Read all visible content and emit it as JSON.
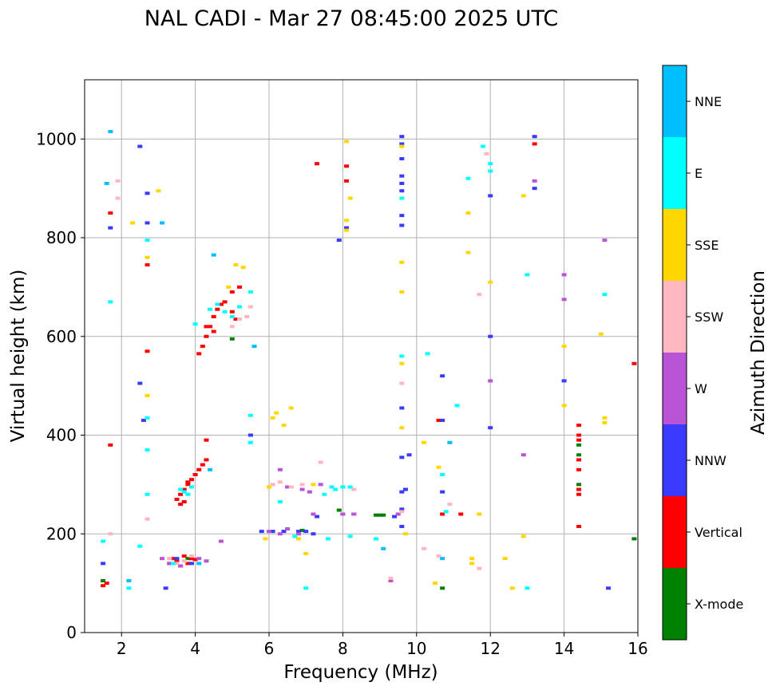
{
  "chart_data": {
    "type": "scatter",
    "title": "NAL CADI - Mar 27 08:45:00 2025 UTC",
    "xlabel": "Frequency (MHz)",
    "ylabel": "Virtual height (km)",
    "xlim": [
      1,
      16
    ],
    "ylim": [
      0,
      1120
    ],
    "x_ticks": [
      "2",
      "4",
      "6",
      "8",
      "10",
      "12",
      "14",
      "16"
    ],
    "y_ticks": [
      "0",
      "200",
      "400",
      "600",
      "800",
      "1000"
    ],
    "grid": true,
    "colorbar": {
      "label": "Azimuth Direction",
      "position": "right",
      "categories": [
        {
          "name": "X-mode",
          "color": "#008000"
        },
        {
          "name": "Vertical",
          "color": "#ff0000"
        },
        {
          "name": "NNW",
          "color": "#3a3aff"
        },
        {
          "name": "W",
          "color": "#b955d4"
        },
        {
          "name": "SSW",
          "color": "#ffb6c1"
        },
        {
          "name": "SSE",
          "color": "#ffd700"
        },
        {
          "name": "E",
          "color": "#00ffff"
        },
        {
          "name": "NNE",
          "color": "#00bfff"
        }
      ]
    },
    "series": [
      {
        "name": "X-mode",
        "color": "#008000",
        "points": [
          [
            5.0,
            595
          ],
          [
            6.9,
            207
          ],
          [
            7.9,
            248
          ],
          [
            8.9,
            238
          ],
          [
            9.0,
            238
          ],
          [
            9.1,
            238
          ],
          [
            10.7,
            90
          ],
          [
            14.4,
            300
          ],
          [
            14.4,
            380
          ],
          [
            14.4,
            360
          ],
          [
            15.9,
            190
          ],
          [
            1.5,
            105
          ],
          [
            3.8,
            150
          ]
        ]
      },
      {
        "name": "Vertical",
        "color": "#ff0000",
        "points": [
          [
            1.5,
            95
          ],
          [
            1.6,
            100
          ],
          [
            1.7,
            380
          ],
          [
            1.7,
            850
          ],
          [
            2.7,
            570
          ],
          [
            2.7,
            745
          ],
          [
            3.3,
            140
          ],
          [
            3.4,
            150
          ],
          [
            3.5,
            145
          ],
          [
            3.6,
            135
          ],
          [
            3.7,
            155
          ],
          [
            3.8,
            140
          ],
          [
            3.9,
            150
          ],
          [
            4.0,
            148
          ],
          [
            3.5,
            270
          ],
          [
            3.6,
            280
          ],
          [
            3.7,
            290
          ],
          [
            3.8,
            300
          ],
          [
            3.8,
            305
          ],
          [
            3.9,
            310
          ],
          [
            4.0,
            320
          ],
          [
            4.1,
            330
          ],
          [
            4.2,
            340
          ],
          [
            4.3,
            350
          ],
          [
            4.3,
            390
          ],
          [
            3.6,
            260
          ],
          [
            3.7,
            265
          ],
          [
            4.1,
            565
          ],
          [
            4.2,
            580
          ],
          [
            4.3,
            600
          ],
          [
            4.4,
            620
          ],
          [
            4.5,
            640
          ],
          [
            4.6,
            655
          ],
          [
            4.7,
            665
          ],
          [
            4.8,
            670
          ],
          [
            5.0,
            690
          ],
          [
            5.2,
            700
          ],
          [
            4.3,
            620
          ],
          [
            4.5,
            610
          ],
          [
            5.0,
            650
          ],
          [
            5.1,
            635
          ],
          [
            7.3,
            950
          ],
          [
            8.1,
            945
          ],
          [
            8.1,
            915
          ],
          [
            10.6,
            430
          ],
          [
            10.7,
            240
          ],
          [
            11.2,
            240
          ],
          [
            13.2,
            990
          ],
          [
            14.4,
            420
          ],
          [
            14.4,
            400
          ],
          [
            14.4,
            390
          ],
          [
            14.4,
            350
          ],
          [
            14.4,
            330
          ],
          [
            14.4,
            290
          ],
          [
            14.4,
            280
          ],
          [
            14.4,
            215
          ],
          [
            15.9,
            545
          ]
        ]
      },
      {
        "name": "NNW",
        "color": "#3a3aff",
        "points": [
          [
            1.5,
            140
          ],
          [
            1.7,
            820
          ],
          [
            2.5,
            985
          ],
          [
            2.7,
            890
          ],
          [
            2.7,
            830
          ],
          [
            2.5,
            505
          ],
          [
            2.6,
            430
          ],
          [
            3.2,
            90
          ],
          [
            3.5,
            150
          ],
          [
            3.9,
            140
          ],
          [
            5.5,
            400
          ],
          [
            5.8,
            205
          ],
          [
            6.1,
            205
          ],
          [
            6.4,
            205
          ],
          [
            6.8,
            205
          ],
          [
            7.0,
            205
          ],
          [
            7.2,
            200
          ],
          [
            7.3,
            235
          ],
          [
            8.0,
            240
          ],
          [
            8.3,
            240
          ],
          [
            7.9,
            795
          ],
          [
            8.1,
            820
          ],
          [
            9.6,
            1005
          ],
          [
            9.6,
            990
          ],
          [
            9.6,
            960
          ],
          [
            9.6,
            925
          ],
          [
            9.6,
            910
          ],
          [
            9.6,
            895
          ],
          [
            9.6,
            845
          ],
          [
            9.6,
            825
          ],
          [
            9.6,
            455
          ],
          [
            9.6,
            355
          ],
          [
            9.8,
            360
          ],
          [
            9.6,
            215
          ],
          [
            9.4,
            235
          ],
          [
            9.6,
            250
          ],
          [
            9.6,
            285
          ],
          [
            9.7,
            290
          ],
          [
            10.7,
            520
          ],
          [
            10.7,
            430
          ],
          [
            10.7,
            285
          ],
          [
            12.0,
            885
          ],
          [
            12.0,
            600
          ],
          [
            12.0,
            415
          ],
          [
            13.2,
            900
          ],
          [
            13.2,
            1005
          ],
          [
            14.0,
            510
          ],
          [
            15.2,
            90
          ]
        ]
      },
      {
        "name": "W",
        "color": "#b955d4",
        "points": [
          [
            3.1,
            150
          ],
          [
            3.3,
            140
          ],
          [
            3.6,
            135
          ],
          [
            4.1,
            150
          ],
          [
            4.3,
            145
          ],
          [
            4.7,
            185
          ],
          [
            6.0,
            205
          ],
          [
            6.3,
            200
          ],
          [
            6.5,
            210
          ],
          [
            6.8,
            200
          ],
          [
            6.3,
            330
          ],
          [
            6.5,
            295
          ],
          [
            6.9,
            290
          ],
          [
            7.2,
            240
          ],
          [
            7.1,
            285
          ],
          [
            7.4,
            300
          ],
          [
            8.0,
            240
          ],
          [
            8.3,
            240
          ],
          [
            9.3,
            105
          ],
          [
            9.5,
            240
          ],
          [
            12.0,
            510
          ],
          [
            12.9,
            360
          ],
          [
            13.2,
            915
          ],
          [
            14.0,
            675
          ],
          [
            14.0,
            725
          ],
          [
            15.1,
            795
          ]
        ]
      },
      {
        "name": "SSW",
        "color": "#ffb6c1",
        "points": [
          [
            1.7,
            200
          ],
          [
            1.9,
            915
          ],
          [
            1.9,
            880
          ],
          [
            2.7,
            230
          ],
          [
            3.3,
            150
          ],
          [
            3.5,
            140
          ],
          [
            3.7,
            145
          ],
          [
            3.9,
            155
          ],
          [
            5.0,
            620
          ],
          [
            5.2,
            635
          ],
          [
            5.4,
            640
          ],
          [
            5.5,
            660
          ],
          [
            6.1,
            300
          ],
          [
            6.3,
            305
          ],
          [
            6.6,
            295
          ],
          [
            6.9,
            300
          ],
          [
            7.4,
            345
          ],
          [
            8.3,
            290
          ],
          [
            9.3,
            110
          ],
          [
            9.6,
            245
          ],
          [
            9.6,
            505
          ],
          [
            10.2,
            170
          ],
          [
            10.6,
            155
          ],
          [
            10.9,
            260
          ],
          [
            11.7,
            685
          ],
          [
            11.7,
            130
          ],
          [
            11.9,
            970
          ]
        ]
      },
      {
        "name": "SSE",
        "color": "#ffd700",
        "points": [
          [
            2.3,
            830
          ],
          [
            2.7,
            760
          ],
          [
            2.7,
            480
          ],
          [
            3.0,
            895
          ],
          [
            4.9,
            700
          ],
          [
            5.1,
            745
          ],
          [
            5.3,
            740
          ],
          [
            5.9,
            190
          ],
          [
            6.0,
            295
          ],
          [
            6.1,
            435
          ],
          [
            6.2,
            445
          ],
          [
            6.4,
            420
          ],
          [
            6.6,
            455
          ],
          [
            6.7,
            195
          ],
          [
            6.8,
            190
          ],
          [
            7.0,
            160
          ],
          [
            7.2,
            300
          ],
          [
            8.1,
            995
          ],
          [
            8.2,
            880
          ],
          [
            8.1,
            835
          ],
          [
            8.1,
            815
          ],
          [
            9.6,
            985
          ],
          [
            9.6,
            750
          ],
          [
            9.6,
            690
          ],
          [
            9.6,
            545
          ],
          [
            9.6,
            415
          ],
          [
            9.7,
            200
          ],
          [
            10.2,
            385
          ],
          [
            10.5,
            100
          ],
          [
            10.6,
            335
          ],
          [
            11.4,
            850
          ],
          [
            11.4,
            770
          ],
          [
            11.5,
            140
          ],
          [
            11.5,
            150
          ],
          [
            11.7,
            240
          ],
          [
            12.0,
            710
          ],
          [
            12.4,
            150
          ],
          [
            12.6,
            90
          ],
          [
            12.9,
            885
          ],
          [
            12.9,
            195
          ],
          [
            14.0,
            580
          ],
          [
            14.0,
            460
          ],
          [
            15.0,
            605
          ],
          [
            15.1,
            435
          ],
          [
            15.1,
            425
          ]
        ]
      },
      {
        "name": "E",
        "color": "#00ffff",
        "points": [
          [
            1.5,
            185
          ],
          [
            1.7,
            670
          ],
          [
            2.2,
            90
          ],
          [
            2.5,
            175
          ],
          [
            2.7,
            280
          ],
          [
            2.7,
            370
          ],
          [
            2.7,
            435
          ],
          [
            2.7,
            795
          ],
          [
            3.4,
            140
          ],
          [
            3.6,
            290
          ],
          [
            3.7,
            285
          ],
          [
            3.8,
            280
          ],
          [
            3.9,
            295
          ],
          [
            4.0,
            625
          ],
          [
            4.4,
            655
          ],
          [
            4.6,
            665
          ],
          [
            4.8,
            650
          ],
          [
            5.0,
            640
          ],
          [
            5.2,
            660
          ],
          [
            5.5,
            690
          ],
          [
            5.6,
            580
          ],
          [
            5.5,
            440
          ],
          [
            5.5,
            385
          ],
          [
            6.3,
            265
          ],
          [
            6.7,
            195
          ],
          [
            7.0,
            90
          ],
          [
            7.5,
            280
          ],
          [
            7.6,
            190
          ],
          [
            7.7,
            295
          ],
          [
            7.8,
            290
          ],
          [
            8.0,
            295
          ],
          [
            8.2,
            295
          ],
          [
            8.2,
            195
          ],
          [
            8.9,
            190
          ],
          [
            9.6,
            880
          ],
          [
            9.6,
            560
          ],
          [
            10.3,
            565
          ],
          [
            10.7,
            320
          ],
          [
            10.8,
            245
          ],
          [
            11.1,
            460
          ],
          [
            11.4,
            920
          ],
          [
            11.8,
            985
          ],
          [
            12.0,
            950
          ],
          [
            12.0,
            935
          ],
          [
            13.0,
            725
          ],
          [
            13.0,
            90
          ],
          [
            15.1,
            685
          ]
        ]
      },
      {
        "name": "NNE",
        "color": "#00bfff",
        "points": [
          [
            1.7,
            1015
          ],
          [
            1.6,
            910
          ],
          [
            2.2,
            105
          ],
          [
            3.1,
            830
          ],
          [
            4.5,
            765
          ],
          [
            4.4,
            330
          ],
          [
            4.1,
            140
          ],
          [
            5.6,
            580
          ],
          [
            9.1,
            170
          ],
          [
            10.7,
            150
          ],
          [
            10.9,
            385
          ]
        ]
      }
    ]
  }
}
